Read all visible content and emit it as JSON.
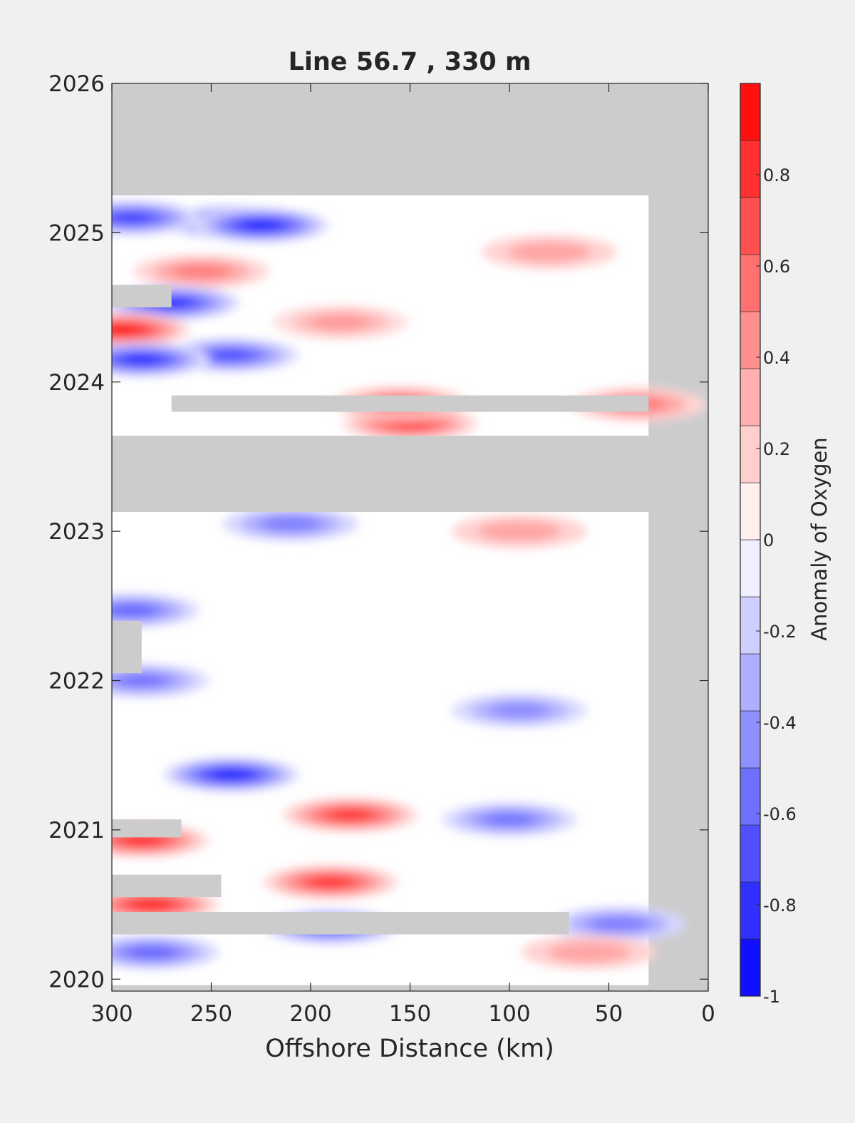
{
  "figure": {
    "background": "#f0f0f0",
    "nodata_color": "#cccccc"
  },
  "chart_data": {
    "type": "heatmap",
    "title": "Line 56.7 , 330 m",
    "xlabel": "Offshore Distance (km)",
    "ylabel": "",
    "x_reversed": true,
    "xlim": [
      0,
      300
    ],
    "ylim": [
      2019.92,
      2026
    ],
    "xticks": [
      300,
      250,
      200,
      150,
      100,
      50,
      0
    ],
    "yticks": [
      2020,
      2021,
      2022,
      2023,
      2024,
      2025,
      2026
    ],
    "colorbar": {
      "label": "Anomaly of Oxygen",
      "range": [
        -1,
        1
      ],
      "levels": 16,
      "ticks": [
        -1,
        -0.8,
        -0.6,
        -0.4,
        -0.2,
        0,
        0.2,
        0.4,
        0.6,
        0.8
      ],
      "colors": {
        "low": "#0000ff",
        "mid": "#ffffff",
        "high": "#ff0000"
      }
    },
    "data_extent": {
      "x": [
        30,
        300
      ],
      "y": [
        2019.96,
        2025.25
      ]
    },
    "nodata_periods": [
      {
        "x": [
          0,
          300
        ],
        "y": [
          2023.13,
          2023.64
        ]
      },
      {
        "x": [
          30,
          270
        ],
        "y": [
          2023.8,
          2023.91
        ]
      },
      {
        "x": [
          70,
          300
        ],
        "y": [
          2020.3,
          2020.45
        ]
      },
      {
        "x": [
          270,
          300
        ],
        "y": [
          2024.5,
          2024.65
        ]
      },
      {
        "x": [
          285,
          300
        ],
        "y": [
          2022.05,
          2022.4
        ]
      },
      {
        "x": [
          265,
          300
        ],
        "y": [
          2020.95,
          2021.07
        ]
      },
      {
        "x": [
          245,
          300
        ],
        "y": [
          2020.55,
          2020.7
        ]
      }
    ],
    "anomaly_features": [
      {
        "x": 240,
        "y": 2025.07,
        "value": -0.85
      },
      {
        "x": 225,
        "y": 2025.05,
        "value": -0.9
      },
      {
        "x": 290,
        "y": 2025.1,
        "value": -0.75
      },
      {
        "x": 255,
        "y": 2024.74,
        "value": 0.5
      },
      {
        "x": 270,
        "y": 2024.53,
        "value": -0.8
      },
      {
        "x": 295,
        "y": 2024.35,
        "value": 0.95
      },
      {
        "x": 185,
        "y": 2024.4,
        "value": 0.4
      },
      {
        "x": 240,
        "y": 2024.18,
        "value": -0.7
      },
      {
        "x": 285,
        "y": 2024.15,
        "value": -0.85
      },
      {
        "x": 150,
        "y": 2023.72,
        "value": 0.75
      },
      {
        "x": 155,
        "y": 2023.86,
        "value": 0.6
      },
      {
        "x": 35,
        "y": 2023.85,
        "value": 0.5
      },
      {
        "x": 80,
        "y": 2024.87,
        "value": 0.35
      },
      {
        "x": 95,
        "y": 2023.0,
        "value": 0.35
      },
      {
        "x": 210,
        "y": 2023.05,
        "value": -0.5
      },
      {
        "x": 290,
        "y": 2022.47,
        "value": -0.6
      },
      {
        "x": 285,
        "y": 2022.0,
        "value": -0.55
      },
      {
        "x": 95,
        "y": 2021.8,
        "value": -0.45
      },
      {
        "x": 240,
        "y": 2021.37,
        "value": -0.9
      },
      {
        "x": 180,
        "y": 2021.1,
        "value": 0.8
      },
      {
        "x": 100,
        "y": 2021.07,
        "value": -0.55
      },
      {
        "x": 190,
        "y": 2020.65,
        "value": 0.8
      },
      {
        "x": 285,
        "y": 2020.93,
        "value": 0.85
      },
      {
        "x": 280,
        "y": 2020.5,
        "value": 0.9
      },
      {
        "x": 190,
        "y": 2020.35,
        "value": -0.65
      },
      {
        "x": 45,
        "y": 2020.37,
        "value": -0.5
      },
      {
        "x": 280,
        "y": 2020.18,
        "value": -0.6
      },
      {
        "x": 60,
        "y": 2020.18,
        "value": 0.35
      }
    ]
  }
}
